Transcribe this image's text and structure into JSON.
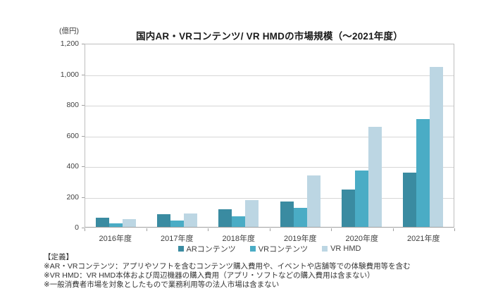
{
  "chart": {
    "title": "国内AR・VRコンテンツ/ VR HMDの市場規模（～2021年度）",
    "unit_label": "(億円)"
  },
  "chart_data": {
    "type": "bar",
    "categories": [
      "2016年度",
      "2017年度",
      "2018年度",
      "2019年度",
      "2020年度",
      "2021年度"
    ],
    "series": [
      {
        "name": "ARコンテンツ",
        "color": "#3a8ba1",
        "values": [
          58,
          83,
          118,
          165,
          245,
          355
        ]
      },
      {
        "name": "VRコンテンツ",
        "color": "#4aacc5",
        "values": [
          25,
          40,
          70,
          125,
          370,
          710
        ]
      },
      {
        "name": "VR HMD",
        "color": "#bcd6e3",
        "values": [
          53,
          88,
          177,
          340,
          660,
          1050
        ]
      }
    ],
    "title": "国内AR・VRコンテンツ/ VR HMDの市場規模（～2021年度）",
    "xlabel": "",
    "ylabel": "(億円)",
    "ylim": [
      0,
      1200
    ],
    "yticks": [
      0,
      200,
      400,
      600,
      800,
      1000,
      1200
    ],
    "grid": true,
    "legend_position": "bottom"
  },
  "footer": {
    "heading": "【定義】",
    "lines": [
      "※AR・VRコンテンツ：アプリやソフトを含むコンテンツ購入費用や、イベントや店舗等での体験費用等を含む",
      "※VR HMD：VR HMD本体および周辺機器の購入費用（アプリ・ソフトなどの購入費用は含まない）",
      "※一般消費者市場を対象としたもので業務利用等の法人市場は含まない"
    ]
  }
}
